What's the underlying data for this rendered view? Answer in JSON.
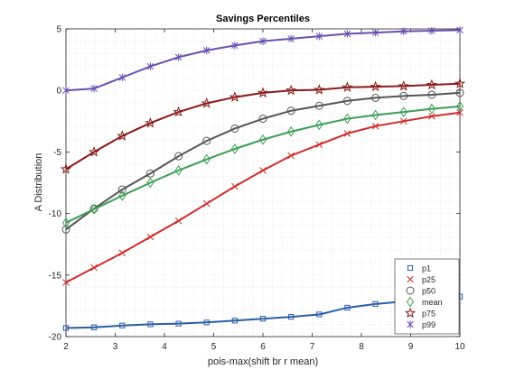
{
  "chart_data": {
    "type": "line",
    "title": "Savings Percentiles",
    "xlabel": "pois-max(shift br r mean)",
    "ylabel": "A Distribution",
    "xlim": [
      2,
      10
    ],
    "ylim": [
      -20,
      5
    ],
    "xticks": [
      2,
      3,
      4,
      5,
      6,
      7,
      8,
      9,
      10
    ],
    "yticks": [
      -20,
      -15,
      -10,
      -5,
      0,
      5
    ],
    "grid": "minor dotted",
    "legend_position": "bottom-right",
    "x": [
      2.0,
      2.571,
      3.143,
      3.714,
      4.286,
      4.857,
      5.429,
      6.0,
      6.571,
      7.143,
      7.714,
      8.286,
      8.857,
      9.429,
      10.0
    ],
    "series": [
      {
        "name": "p1",
        "color": "#2a5da8",
        "marker": "square",
        "values": [
          -19.3,
          -19.25,
          -19.1,
          -19.0,
          -18.95,
          -18.85,
          -18.7,
          -18.55,
          -18.4,
          -18.2,
          -17.65,
          -17.35,
          -17.15,
          -16.95,
          -16.75
        ]
      },
      {
        "name": "p25",
        "color": "#d12b2b",
        "marker": "x",
        "values": [
          -15.6,
          -14.4,
          -13.2,
          -11.9,
          -10.6,
          -9.2,
          -7.8,
          -6.5,
          -5.3,
          -4.4,
          -3.5,
          -2.9,
          -2.5,
          -2.1,
          -1.8
        ]
      },
      {
        "name": "p50",
        "color": "#555555",
        "marker": "circle",
        "values": [
          -11.3,
          -9.6,
          -8.05,
          -6.75,
          -5.35,
          -4.1,
          -3.1,
          -2.3,
          -1.65,
          -1.25,
          -0.85,
          -0.6,
          -0.45,
          -0.35,
          -0.2
        ]
      },
      {
        "name": "mean",
        "color": "#3d9e55",
        "marker": "diamond",
        "values": [
          -10.75,
          -9.65,
          -8.55,
          -7.5,
          -6.5,
          -5.6,
          -4.75,
          -4.0,
          -3.35,
          -2.8,
          -2.3,
          -2.0,
          -1.75,
          -1.5,
          -1.3
        ]
      },
      {
        "name": "p75",
        "color": "#8b1a1a",
        "marker": "star",
        "values": [
          -6.4,
          -5.0,
          -3.7,
          -2.65,
          -1.75,
          -1.05,
          -0.55,
          -0.2,
          0.0,
          0.05,
          0.25,
          0.3,
          0.35,
          0.45,
          0.55
        ]
      },
      {
        "name": "p99",
        "color": "#6a4fb0",
        "marker": "asterisk",
        "values": [
          0.0,
          0.15,
          1.05,
          1.95,
          2.7,
          3.25,
          3.65,
          4.0,
          4.2,
          4.4,
          4.6,
          4.7,
          4.8,
          4.85,
          4.9
        ]
      }
    ]
  }
}
